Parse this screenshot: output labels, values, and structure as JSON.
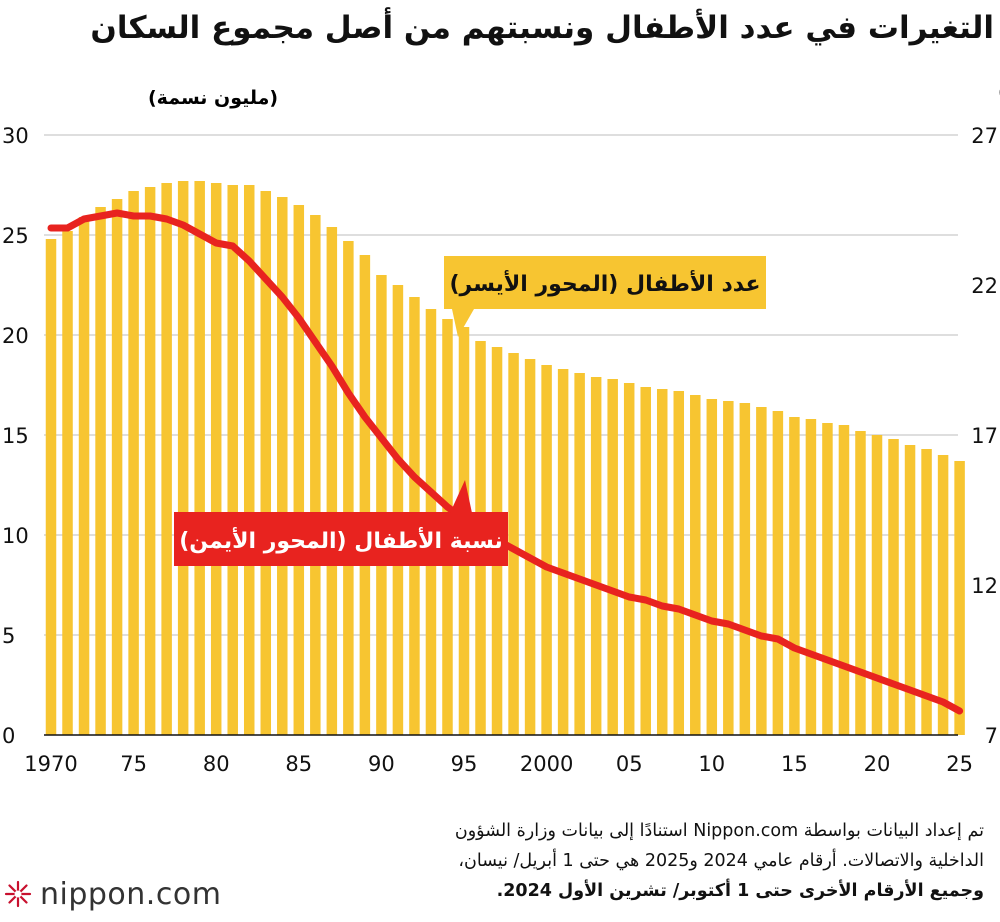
{
  "title": "التغيرات في عدد الأطفال ونسبتهم من أصل مجموع السكان",
  "chart_data": {
    "type": "bar",
    "left_axis_unit": "(مليون نسمة)",
    "right_axis_unit": "(٪)",
    "x_tick_labels": [
      "1970",
      "75",
      "80",
      "85",
      "90",
      "95",
      "2000",
      "05",
      "10",
      "15",
      "20",
      "25"
    ],
    "left_ticks": [
      "0",
      "5",
      "10",
      "15",
      "20",
      "25",
      "30"
    ],
    "right_ticks": [
      "7",
      "12",
      "17",
      "22",
      "27"
    ],
    "ylim_left": [
      0,
      30
    ],
    "ylim_right": [
      7,
      27
    ],
    "grid": "horizontal",
    "years": [
      1970,
      1971,
      1972,
      1973,
      1974,
      1975,
      1976,
      1977,
      1978,
      1979,
      1980,
      1981,
      1982,
      1983,
      1984,
      1985,
      1986,
      1987,
      1988,
      1989,
      1990,
      1991,
      1992,
      1993,
      1994,
      1995,
      1996,
      1997,
      1998,
      1999,
      2000,
      2001,
      2002,
      2003,
      2004,
      2005,
      2006,
      2007,
      2008,
      2009,
      2010,
      2011,
      2012,
      2013,
      2014,
      2015,
      2016,
      2017,
      2018,
      2019,
      2020,
      2021,
      2022,
      2023,
      2024,
      2025
    ],
    "series": [
      {
        "name": "عدد الأطفال (المحور الأيسر)",
        "type": "bar",
        "axis": "left",
        "color": "#f7c531",
        "values": [
          24.8,
          25.2,
          25.9,
          26.4,
          26.8,
          27.2,
          27.4,
          27.6,
          27.7,
          27.7,
          27.6,
          27.5,
          27.5,
          27.2,
          26.9,
          26.5,
          26.0,
          25.4,
          24.7,
          24.0,
          23.0,
          22.5,
          21.9,
          21.3,
          20.8,
          20.4,
          19.7,
          19.4,
          19.1,
          18.8,
          18.5,
          18.3,
          18.1,
          17.9,
          17.8,
          17.6,
          17.4,
          17.3,
          17.2,
          17.0,
          16.8,
          16.7,
          16.6,
          16.4,
          16.2,
          15.9,
          15.8,
          15.6,
          15.5,
          15.2,
          15.0,
          14.8,
          14.5,
          14.3,
          14.0,
          13.7
        ]
      },
      {
        "name": "نسبة الأطفال (المحور الأيمن)",
        "type": "line",
        "axis": "right",
        "color": "#e8231f",
        "values": [
          23.9,
          23.9,
          24.2,
          24.3,
          24.4,
          24.3,
          24.3,
          24.2,
          24.0,
          23.7,
          23.4,
          23.3,
          22.8,
          22.2,
          21.6,
          20.9,
          20.1,
          19.3,
          18.4,
          17.6,
          16.9,
          16.2,
          15.6,
          15.1,
          14.6,
          14.2,
          13.8,
          13.5,
          13.2,
          12.9,
          12.6,
          12.4,
          12.2,
          12.0,
          11.8,
          11.6,
          11.5,
          11.3,
          11.2,
          11.0,
          10.8,
          10.7,
          10.5,
          10.3,
          10.2,
          9.9,
          9.7,
          9.5,
          9.3,
          9.1,
          8.9,
          8.7,
          8.5,
          8.3,
          8.1,
          7.8
        ]
      }
    ],
    "annotations": {
      "bars_label": "عدد الأطفال (المحور الأيسر)",
      "line_label": "نسبة الأطفال (المحور الأيمن)"
    }
  },
  "source": {
    "line1": "تم إعداد البيانات بواسطة Nippon.com استنادًا إلى بيانات وزارة الشؤون",
    "line2": "الداخلية والاتصالات. أرقام عامي 2024 و2025 هي حتى 1 أبريل/ نيسان،",
    "line3": "وجميع الأرقام الأخرى حتى 1 أكتوبر/ تشرين الأول 2024."
  },
  "logo": {
    "text": "nippon.com",
    "icon": "nippon-burst-icon"
  }
}
